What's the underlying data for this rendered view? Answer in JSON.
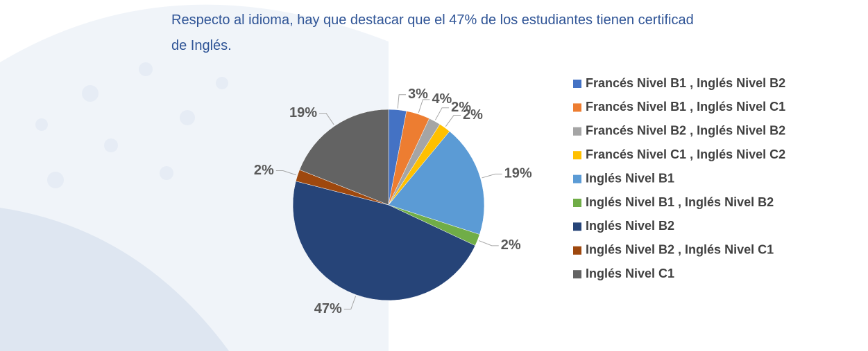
{
  "paragraph": [
    "Respecto al idioma, hay que destacar que el 47% de los estudiantes tienen certificad",
    "de Inglés."
  ],
  "chart_data": {
    "type": "pie",
    "categories": [
      "Francés Nivel B1 , Inglés Nivel B2",
      "Francés Nivel B1 , Inglés Nivel C1",
      "Francés Nivel B2 , Inglés Nivel B2",
      "Francés Nivel C1 , Inglés Nivel C2",
      "Inglés Nivel B1",
      "Inglés Nivel B1 , Inglés Nivel B2",
      "Inglés Nivel B2",
      "Inglés Nivel B2 , Inglés Nivel C1",
      "Inglés Nivel C1"
    ],
    "values": [
      3,
      4,
      2,
      2,
      19,
      2,
      47,
      2,
      19
    ],
    "value_labels": [
      "3%",
      "4%",
      "2%",
      "2%",
      "19%",
      "2%",
      "47%",
      "2%",
      "19%"
    ],
    "colors": [
      "#4472c4",
      "#ed7d31",
      "#a5a5a5",
      "#ffc000",
      "#5b9bd5",
      "#70ad47",
      "#264478",
      "#9e480e",
      "#636363"
    ],
    "legend": "right"
  }
}
